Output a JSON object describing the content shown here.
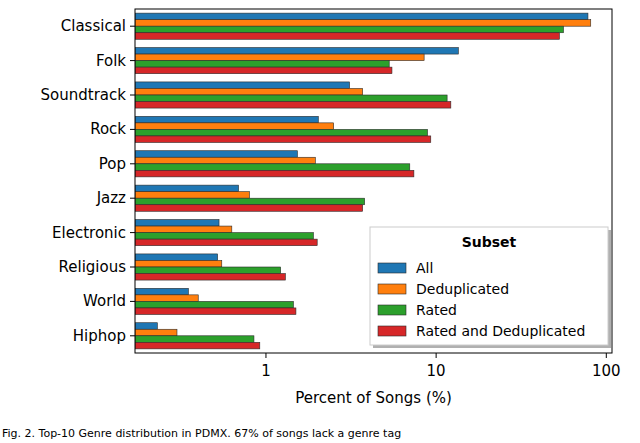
{
  "chart_data": {
    "type": "bar",
    "orientation": "horizontal",
    "log": "x",
    "grid": false,
    "legend": "lower right",
    "legend_title": "Subset",
    "x_label": "Percent of Songs (%)",
    "annotations": [
      "Fig. 2.  Top-10 Genre distribution in PDMX. 67% of songs lack a genre tag"
    ],
    "categories": [
      "Classical",
      "Folk",
      "Soundtrack",
      "Rock",
      "Pop",
      "Jazz",
      "Electronic",
      "Religious",
      "World",
      "Hiphop"
    ],
    "xlim": [
      0.17,
      108
    ],
    "xticks": [
      1,
      10,
      100
    ],
    "series": [
      {
        "name": "All",
        "color": "#1f77b4",
        "values": [
          78,
          13.5,
          3.1,
          2.03,
          1.53,
          0.69,
          0.53,
          0.52,
          0.35,
          0.23
        ]
      },
      {
        "name": "Deduplicated",
        "color": "#ff7f0e",
        "values": [
          81,
          8.5,
          3.7,
          2.5,
          1.95,
          0.8,
          0.63,
          0.55,
          0.4,
          0.3
        ]
      },
      {
        "name": "Rated",
        "color": "#2ca02c",
        "values": [
          56,
          5.3,
          11.6,
          8.9,
          7.0,
          3.8,
          1.9,
          1.22,
          1.45,
          0.85
        ]
      },
      {
        "name": "Rated and Deduplicated",
        "color": "#d62728",
        "values": [
          53,
          5.5,
          12.2,
          9.3,
          7.4,
          3.7,
          2.0,
          1.3,
          1.5,
          0.92
        ]
      }
    ]
  }
}
